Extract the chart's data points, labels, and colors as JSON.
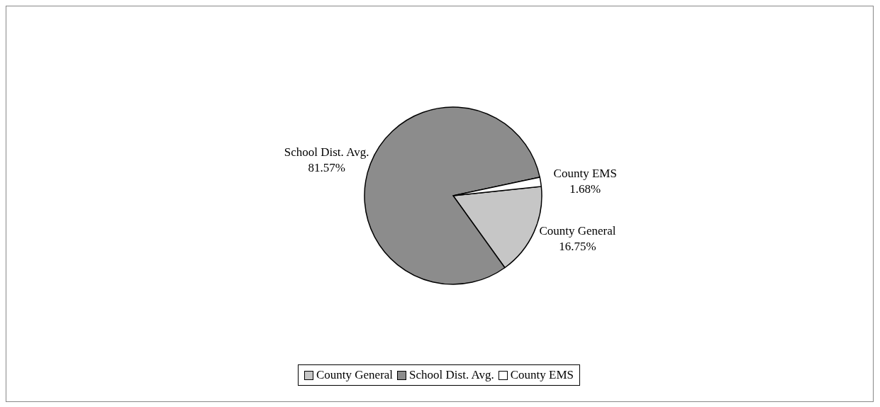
{
  "chart_data": {
    "type": "pie",
    "categories": [
      "County General",
      "School Dist. Avg.",
      "County EMS"
    ],
    "values": [
      16.75,
      81.57,
      1.68
    ],
    "colors": [
      "#c6c6c6",
      "#8c8c8c",
      "#ffffff"
    ],
    "value_labels": [
      "16.75%",
      "81.57%",
      "1.68%"
    ],
    "legend": "bottom"
  }
}
